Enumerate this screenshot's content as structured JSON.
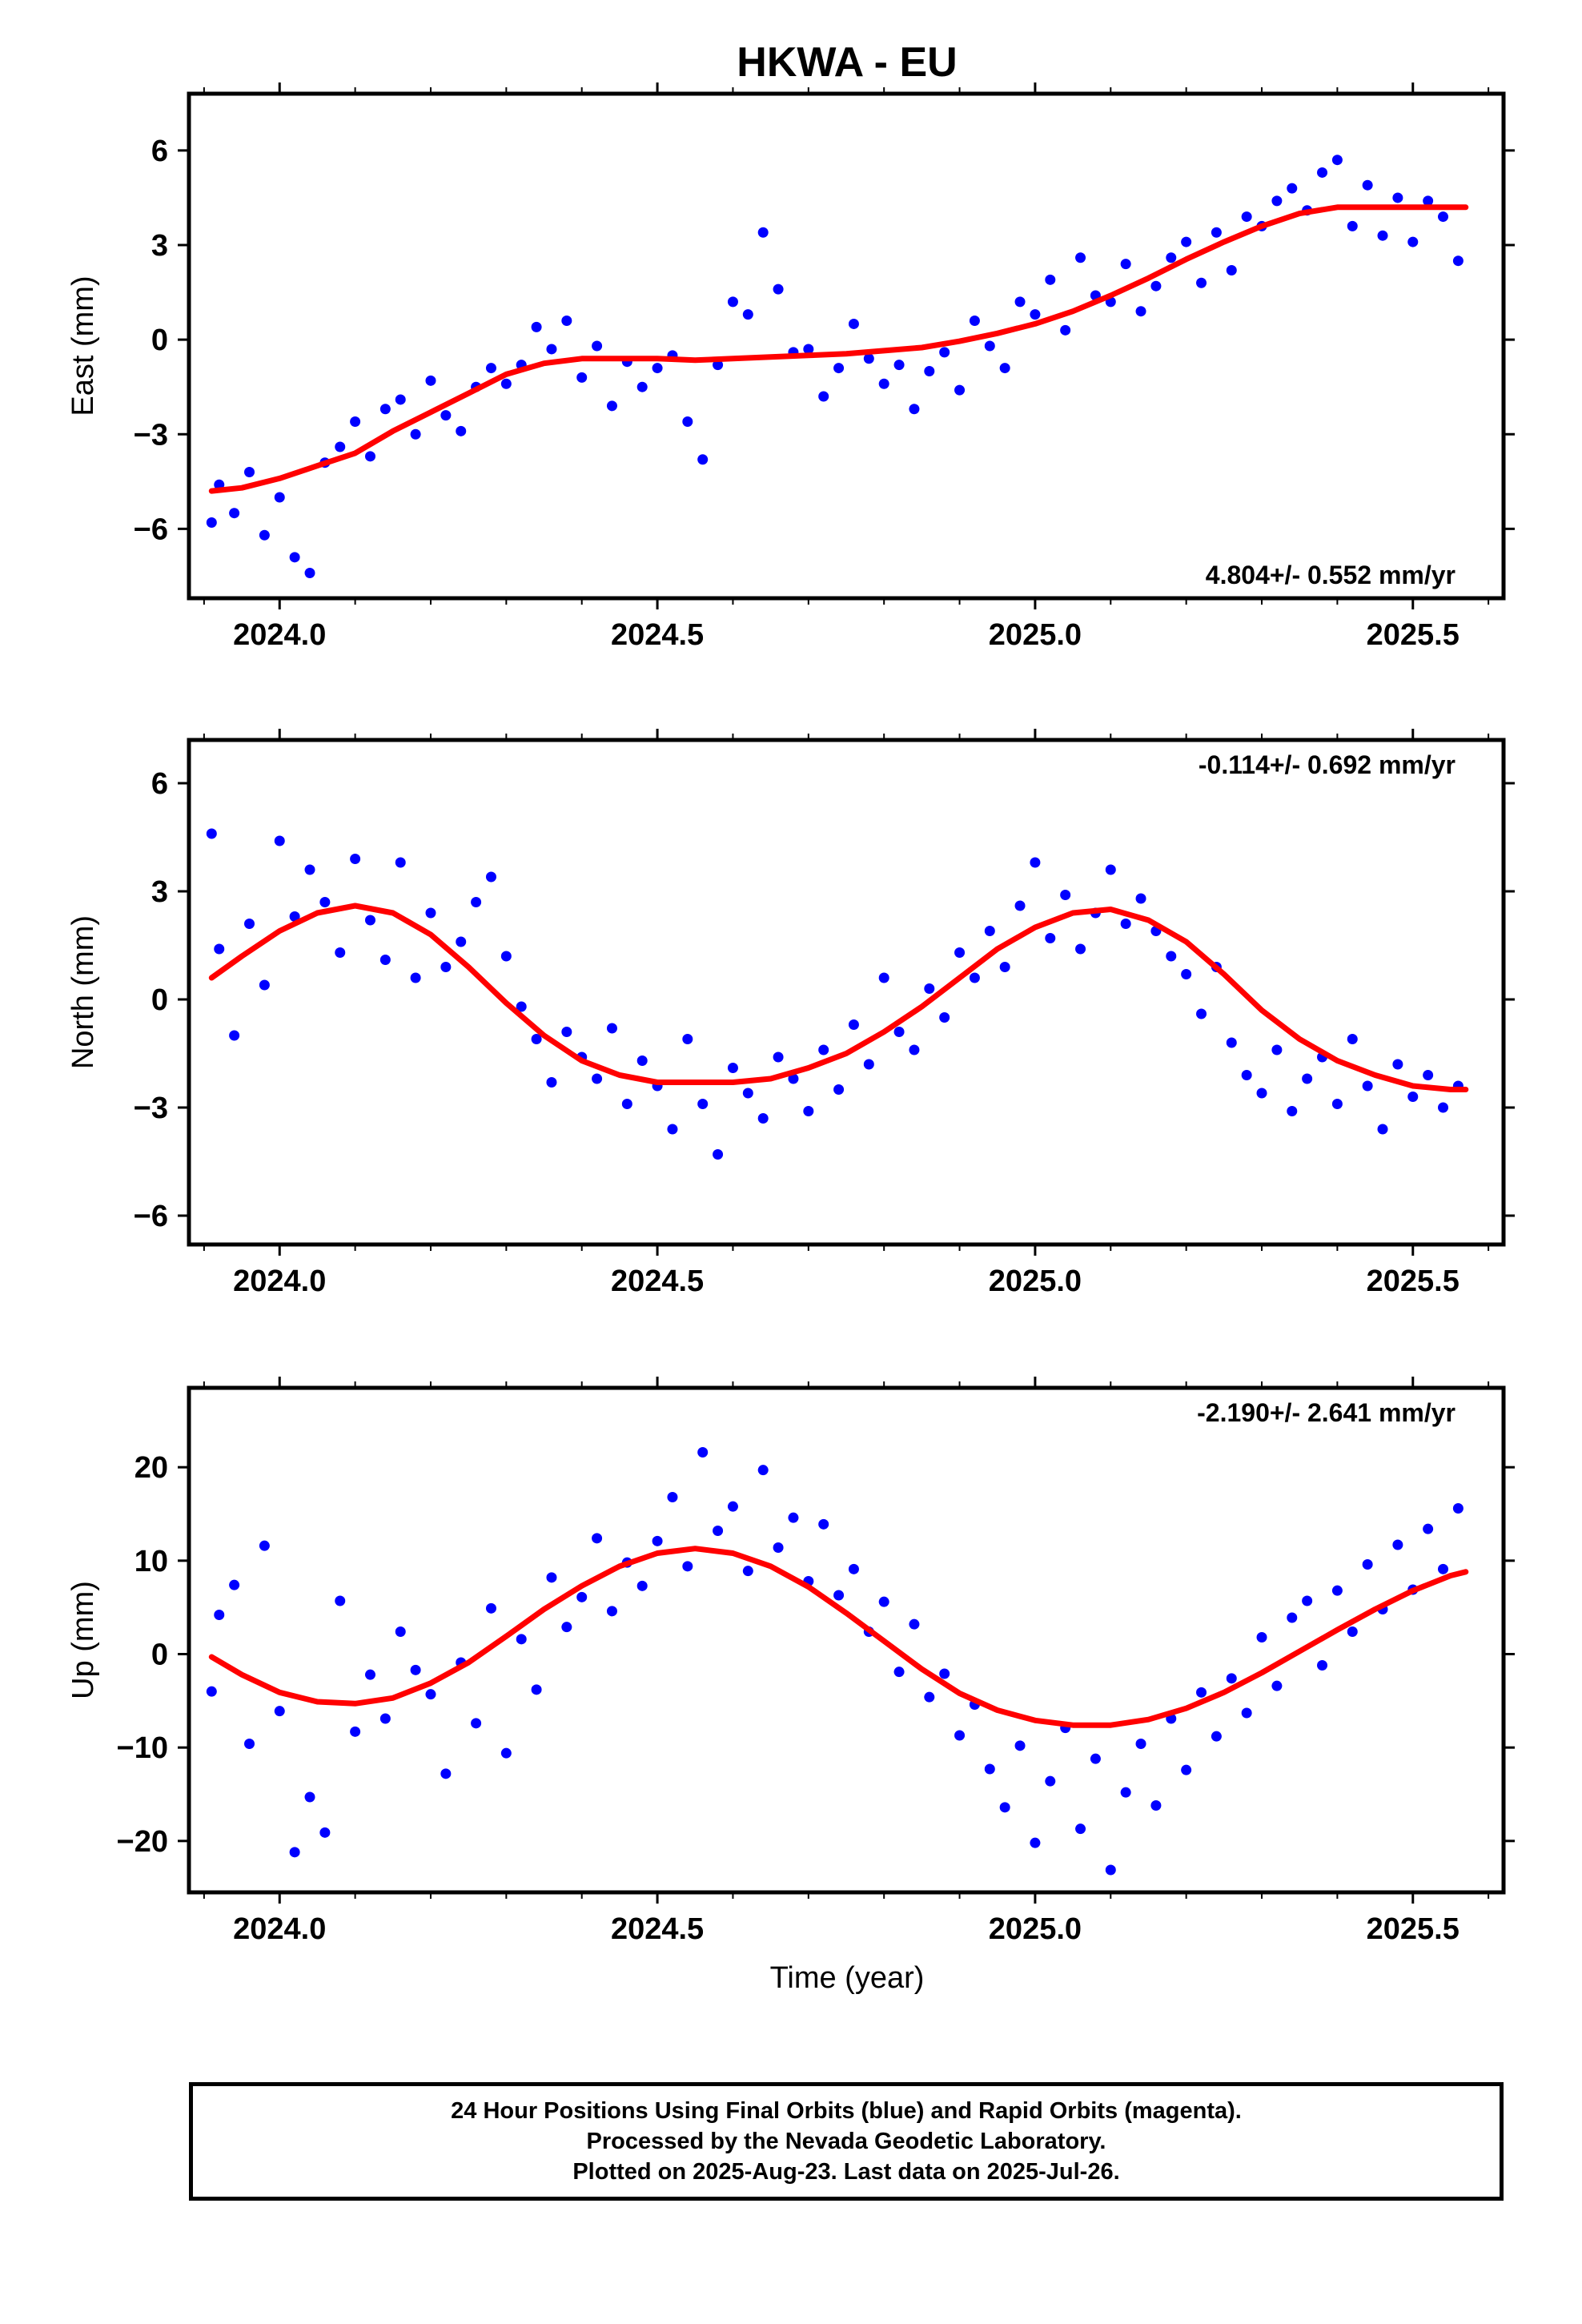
{
  "figure": {
    "title": "HKWA - EU",
    "xlabel": "Time (year)",
    "footer": [
      "24 Hour Positions Using Final Orbits (blue) and Rapid Orbits (magenta).",
      "Processed by the Nevada Geodetic Laboratory.",
      "Plotted on 2025-Aug-23. Last data on 2025-Jul-26."
    ],
    "colors": {
      "points": "#0000ff",
      "fit": "#ff0000",
      "frame": "#000000"
    }
  },
  "chart_data": [
    {
      "type": "scatter",
      "ylabel": "East (mm)",
      "rate_label": "4.804+/- 0.552 mm/yr",
      "rate_position": "bottom-right",
      "xlim": [
        2023.88,
        2025.62
      ],
      "ylim": [
        -8.2,
        7.8
      ],
      "x_ticks": [
        2024.0,
        2024.5,
        2025.0,
        2025.5
      ],
      "x_tick_labels": [
        "2024.0",
        "2024.5",
        "2025.0",
        "2025.5"
      ],
      "y_ticks": [
        -6,
        -3,
        0,
        3,
        6
      ],
      "y_tick_labels": [
        "−6",
        "−3",
        "0",
        "3",
        "6"
      ],
      "series": [
        {
          "style": "points",
          "x": [
            2023.91,
            2023.92,
            2023.94,
            2023.96,
            2023.98,
            2024.0,
            2024.02,
            2024.04,
            2024.06,
            2024.08,
            2024.1,
            2024.12,
            2024.14,
            2024.16,
            2024.18,
            2024.2,
            2024.22,
            2024.24,
            2024.26,
            2024.28,
            2024.3,
            2024.32,
            2024.34,
            2024.36,
            2024.38,
            2024.4,
            2024.42,
            2024.44,
            2024.46,
            2024.48,
            2024.5,
            2024.52,
            2024.54,
            2024.56,
            2024.58,
            2024.6,
            2024.62,
            2024.64,
            2024.66,
            2024.68,
            2024.7,
            2024.72,
            2024.74,
            2024.76,
            2024.78,
            2024.8,
            2024.82,
            2024.84,
            2024.86,
            2024.88,
            2024.9,
            2024.92,
            2024.94,
            2024.96,
            2024.98,
            2025.0,
            2025.02,
            2025.04,
            2025.06,
            2025.08,
            2025.1,
            2025.12,
            2025.14,
            2025.16,
            2025.18,
            2025.2,
            2025.22,
            2025.24,
            2025.26,
            2025.28,
            2025.3,
            2025.32,
            2025.34,
            2025.36,
            2025.38,
            2025.4,
            2025.42,
            2025.44,
            2025.46,
            2025.48,
            2025.5,
            2025.52,
            2025.54,
            2025.56
          ],
          "y": [
            -5.8,
            -4.6,
            -5.5,
            -4.2,
            -6.2,
            -5.0,
            -6.9,
            -7.4,
            -3.9,
            -3.4,
            -2.6,
            -3.7,
            -2.2,
            -1.9,
            -3.0,
            -1.3,
            -2.4,
            -2.9,
            -1.5,
            -0.9,
            -1.4,
            -0.8,
            0.4,
            -0.3,
            0.6,
            -1.2,
            -0.2,
            -2.1,
            -0.7,
            -1.5,
            -0.9,
            -0.5,
            -2.6,
            -3.8,
            -0.8,
            1.2,
            0.8,
            3.4,
            1.6,
            -0.4,
            -0.3,
            -1.8,
            -0.9,
            0.5,
            -0.6,
            -1.4,
            -0.8,
            -2.2,
            -1.0,
            -0.4,
            -1.6,
            0.6,
            -0.2,
            -0.9,
            1.2,
            0.8,
            1.9,
            0.3,
            2.6,
            1.4,
            1.2,
            2.4,
            0.9,
            1.7,
            2.6,
            3.1,
            1.8,
            3.4,
            2.2,
            3.9,
            3.6,
            4.4,
            4.8,
            4.1,
            5.3,
            5.7,
            3.6,
            4.9,
            3.3,
            4.5,
            3.1,
            4.4,
            3.9,
            2.5
          ]
        },
        {
          "style": "fit_line",
          "x": [
            2023.91,
            2023.95,
            2024.0,
            2024.05,
            2024.1,
            2024.15,
            2024.2,
            2024.25,
            2024.3,
            2024.35,
            2024.4,
            2024.45,
            2024.5,
            2024.55,
            2024.6,
            2024.65,
            2024.7,
            2024.75,
            2024.8,
            2024.85,
            2024.9,
            2024.95,
            2025.0,
            2025.05,
            2025.1,
            2025.15,
            2025.2,
            2025.25,
            2025.3,
            2025.35,
            2025.4,
            2025.45,
            2025.5,
            2025.55,
            2025.57
          ],
          "y": [
            -4.8,
            -4.7,
            -4.4,
            -4.0,
            -3.6,
            -2.9,
            -2.3,
            -1.7,
            -1.1,
            -0.75,
            -0.6,
            -0.6,
            -0.6,
            -0.65,
            -0.6,
            -0.55,
            -0.5,
            -0.45,
            -0.35,
            -0.25,
            -0.05,
            0.2,
            0.5,
            0.9,
            1.4,
            1.95,
            2.55,
            3.1,
            3.6,
            4.0,
            4.2,
            4.2,
            4.2,
            4.2,
            4.2
          ]
        }
      ]
    },
    {
      "type": "scatter",
      "ylabel": "North (mm)",
      "rate_label": "-0.114+/- 0.692 mm/yr",
      "rate_position": "top-right",
      "xlim": [
        2023.88,
        2025.62
      ],
      "ylim": [
        -6.8,
        7.2
      ],
      "x_ticks": [
        2024.0,
        2024.5,
        2025.0,
        2025.5
      ],
      "x_tick_labels": [
        "2024.0",
        "2024.5",
        "2025.0",
        "2025.5"
      ],
      "y_ticks": [
        -6,
        -3,
        0,
        3,
        6
      ],
      "y_tick_labels": [
        "−6",
        "−3",
        "0",
        "3",
        "6"
      ],
      "series": [
        {
          "style": "points",
          "x": [
            2023.91,
            2023.92,
            2023.94,
            2023.96,
            2023.98,
            2024.0,
            2024.02,
            2024.04,
            2024.06,
            2024.08,
            2024.1,
            2024.12,
            2024.14,
            2024.16,
            2024.18,
            2024.2,
            2024.22,
            2024.24,
            2024.26,
            2024.28,
            2024.3,
            2024.32,
            2024.34,
            2024.36,
            2024.38,
            2024.4,
            2024.42,
            2024.44,
            2024.46,
            2024.48,
            2024.5,
            2024.52,
            2024.54,
            2024.56,
            2024.58,
            2024.6,
            2024.62,
            2024.64,
            2024.66,
            2024.68,
            2024.7,
            2024.72,
            2024.74,
            2024.76,
            2024.78,
            2024.8,
            2024.82,
            2024.84,
            2024.86,
            2024.88,
            2024.9,
            2024.92,
            2024.94,
            2024.96,
            2024.98,
            2025.0,
            2025.02,
            2025.04,
            2025.06,
            2025.08,
            2025.1,
            2025.12,
            2025.14,
            2025.16,
            2025.18,
            2025.2,
            2025.22,
            2025.24,
            2025.26,
            2025.28,
            2025.3,
            2025.32,
            2025.34,
            2025.36,
            2025.38,
            2025.4,
            2025.42,
            2025.44,
            2025.46,
            2025.48,
            2025.5,
            2025.52,
            2025.54,
            2025.56
          ],
          "y": [
            4.6,
            1.4,
            -1.0,
            2.1,
            0.4,
            4.4,
            2.3,
            3.6,
            2.7,
            1.3,
            3.9,
            2.2,
            1.1,
            3.8,
            0.6,
            2.4,
            0.9,
            1.6,
            2.7,
            3.4,
            1.2,
            -0.2,
            -1.1,
            -2.3,
            -0.9,
            -1.6,
            -2.2,
            -0.8,
            -2.9,
            -1.7,
            -2.4,
            -3.6,
            -1.1,
            -2.9,
            -4.3,
            -1.9,
            -2.6,
            -3.3,
            -1.6,
            -2.2,
            -3.1,
            -1.4,
            -2.5,
            -0.7,
            -1.8,
            0.6,
            -0.9,
            -1.4,
            0.3,
            -0.5,
            1.3,
            0.6,
            1.9,
            0.9,
            2.6,
            3.8,
            1.7,
            2.9,
            1.4,
            2.4,
            3.6,
            2.1,
            2.8,
            1.9,
            1.2,
            0.7,
            -0.4,
            0.9,
            -1.2,
            -2.1,
            -2.6,
            -1.4,
            -3.1,
            -2.2,
            -1.6,
            -2.9,
            -1.1,
            -2.4,
            -3.6,
            -1.8,
            -2.7,
            -2.1,
            -3.0,
            -2.4
          ]
        },
        {
          "style": "fit_line",
          "x": [
            2023.91,
            2023.95,
            2024.0,
            2024.05,
            2024.1,
            2024.15,
            2024.2,
            2024.25,
            2024.3,
            2024.35,
            2024.4,
            2024.45,
            2024.5,
            2024.55,
            2024.6,
            2024.65,
            2024.7,
            2024.75,
            2024.8,
            2024.85,
            2024.9,
            2024.95,
            2025.0,
            2025.05,
            2025.1,
            2025.15,
            2025.2,
            2025.25,
            2025.3,
            2025.35,
            2025.4,
            2025.45,
            2025.5,
            2025.55,
            2025.57
          ],
          "y": [
            0.6,
            1.2,
            1.9,
            2.4,
            2.6,
            2.4,
            1.8,
            0.9,
            -0.1,
            -1.0,
            -1.7,
            -2.1,
            -2.3,
            -2.3,
            -2.3,
            -2.2,
            -1.9,
            -1.5,
            -0.9,
            -0.2,
            0.6,
            1.4,
            2.0,
            2.4,
            2.5,
            2.2,
            1.6,
            0.7,
            -0.3,
            -1.1,
            -1.7,
            -2.1,
            -2.4,
            -2.5,
            -2.5
          ]
        }
      ]
    },
    {
      "type": "scatter",
      "ylabel": "Up (mm)",
      "rate_label": "-2.190+/- 2.641 mm/yr",
      "rate_position": "top-right",
      "xlim": [
        2023.88,
        2025.62
      ],
      "ylim": [
        -25.5,
        28.5
      ],
      "x_ticks": [
        2024.0,
        2024.5,
        2025.0,
        2025.5
      ],
      "x_tick_labels": [
        "2024.0",
        "2024.5",
        "2025.0",
        "2025.5"
      ],
      "y_ticks": [
        -20,
        -10,
        0,
        10,
        20
      ],
      "y_tick_labels": [
        "−20",
        "−10",
        "0",
        "10",
        "20"
      ],
      "series": [
        {
          "style": "points",
          "x": [
            2023.91,
            2023.92,
            2023.94,
            2023.96,
            2023.98,
            2024.0,
            2024.02,
            2024.04,
            2024.06,
            2024.08,
            2024.1,
            2024.12,
            2024.14,
            2024.16,
            2024.18,
            2024.2,
            2024.22,
            2024.24,
            2024.26,
            2024.28,
            2024.3,
            2024.32,
            2024.34,
            2024.36,
            2024.38,
            2024.4,
            2024.42,
            2024.44,
            2024.46,
            2024.48,
            2024.5,
            2024.52,
            2024.54,
            2024.56,
            2024.58,
            2024.6,
            2024.62,
            2024.64,
            2024.66,
            2024.68,
            2024.7,
            2024.72,
            2024.74,
            2024.76,
            2024.78,
            2024.8,
            2024.82,
            2024.84,
            2024.86,
            2024.88,
            2024.9,
            2024.92,
            2024.94,
            2024.96,
            2024.98,
            2025.0,
            2025.02,
            2025.04,
            2025.06,
            2025.08,
            2025.1,
            2025.12,
            2025.14,
            2025.16,
            2025.18,
            2025.2,
            2025.22,
            2025.24,
            2025.26,
            2025.28,
            2025.3,
            2025.32,
            2025.34,
            2025.36,
            2025.38,
            2025.4,
            2025.42,
            2025.44,
            2025.46,
            2025.48,
            2025.5,
            2025.52,
            2025.54,
            2025.56
          ],
          "y": [
            -4.0,
            4.2,
            7.4,
            -9.6,
            11.6,
            -6.1,
            -21.2,
            -15.3,
            -19.1,
            5.7,
            -8.3,
            -2.2,
            -6.9,
            2.4,
            -1.7,
            -4.3,
            -12.8,
            -0.9,
            -7.4,
            4.9,
            -10.6,
            1.6,
            -3.8,
            8.2,
            2.9,
            6.1,
            12.4,
            4.6,
            9.8,
            7.3,
            12.1,
            16.8,
            9.4,
            21.6,
            13.2,
            15.8,
            8.9,
            19.7,
            11.4,
            14.6,
            7.8,
            13.9,
            6.3,
            9.1,
            2.4,
            5.6,
            -1.9,
            3.2,
            -4.6,
            -2.1,
            -8.7,
            -5.4,
            -12.3,
            -16.4,
            -9.8,
            -20.2,
            -13.6,
            -7.9,
            -18.7,
            -11.2,
            -23.1,
            -14.8,
            -9.6,
            -16.2,
            -6.9,
            -12.4,
            -4.1,
            -8.8,
            -2.6,
            -6.3,
            1.8,
            -3.4,
            3.9,
            5.7,
            -1.2,
            6.8,
            2.4,
            9.6,
            4.8,
            11.7,
            6.9,
            13.4,
            9.1,
            15.6
          ]
        },
        {
          "style": "fit_line",
          "x": [
            2023.91,
            2023.95,
            2024.0,
            2024.05,
            2024.1,
            2024.15,
            2024.2,
            2024.25,
            2024.3,
            2024.35,
            2024.4,
            2024.45,
            2024.5,
            2024.55,
            2024.6,
            2024.65,
            2024.7,
            2024.75,
            2024.8,
            2024.85,
            2024.9,
            2024.95,
            2025.0,
            2025.05,
            2025.1,
            2025.15,
            2025.2,
            2025.25,
            2025.3,
            2025.35,
            2025.4,
            2025.45,
            2025.5,
            2025.55,
            2025.57
          ],
          "y": [
            -0.3,
            -2.2,
            -4.1,
            -5.1,
            -5.3,
            -4.7,
            -3.1,
            -0.9,
            1.9,
            4.8,
            7.3,
            9.4,
            10.8,
            11.3,
            10.8,
            9.4,
            7.2,
            4.4,
            1.4,
            -1.6,
            -4.2,
            -6.0,
            -7.1,
            -7.6,
            -7.6,
            -7.0,
            -5.8,
            -4.1,
            -2.0,
            0.3,
            2.6,
            4.8,
            6.8,
            8.4,
            8.8
          ]
        }
      ]
    }
  ]
}
